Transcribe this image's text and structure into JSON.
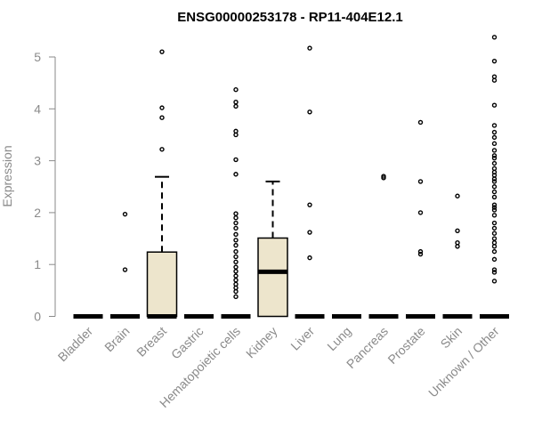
{
  "chart_data": {
    "type": "boxplot",
    "title": "ENSG00000253178 - RP11-404E12.1",
    "xlabel": "",
    "ylabel": "Expression",
    "ylim": [
      0,
      5.5
    ],
    "yticks": [
      0,
      1,
      2,
      3,
      4,
      5
    ],
    "grid": false,
    "categories": [
      "Bladder",
      "Brain",
      "Breast",
      "Gastric",
      "Hematopoietic cells",
      "Kidney",
      "Liver",
      "Lung",
      "Pancreas",
      "Prostate",
      "Skin",
      "Unknown / Other"
    ],
    "boxes": [
      {
        "category": "Bladder",
        "q1": 0,
        "median": 0,
        "q3": 0,
        "whisker_low": 0,
        "whisker_high": 0,
        "outliers": []
      },
      {
        "category": "Brain",
        "q1": 0,
        "median": 0,
        "q3": 0,
        "whisker_low": 0,
        "whisker_high": 0,
        "outliers": [
          0.9,
          1.97
        ]
      },
      {
        "category": "Breast",
        "q1": 0,
        "median": 0,
        "q3": 1.24,
        "whisker_low": 0,
        "whisker_high": 2.69,
        "outliers": [
          3.22,
          3.83,
          4.02,
          5.1
        ]
      },
      {
        "category": "Gastric",
        "q1": 0,
        "median": 0,
        "q3": 0,
        "whisker_low": 0,
        "whisker_high": 0,
        "outliers": []
      },
      {
        "category": "Hematopoietic cells",
        "q1": 0,
        "median": 0,
        "q3": 0,
        "whisker_low": 0,
        "whisker_high": 0,
        "outliers": [
          0.38,
          0.48,
          0.55,
          0.62,
          0.7,
          0.78,
          0.87,
          0.95,
          1.05,
          1.15,
          1.25,
          1.37,
          1.47,
          1.58,
          1.7,
          1.8,
          1.9,
          1.98,
          2.74,
          3.02,
          3.5,
          3.57,
          4.05,
          4.13,
          4.37
        ]
      },
      {
        "category": "Kidney",
        "q1": 0,
        "median": 0.86,
        "q3": 1.51,
        "whisker_low": 0,
        "whisker_high": 2.6,
        "outliers": []
      },
      {
        "category": "Liver",
        "q1": 0,
        "median": 0,
        "q3": 0,
        "whisker_low": 0,
        "whisker_high": 0,
        "outliers": [
          1.13,
          1.62,
          2.15,
          3.94,
          5.17
        ]
      },
      {
        "category": "Lung",
        "q1": 0,
        "median": 0,
        "q3": 0,
        "whisker_low": 0,
        "whisker_high": 0,
        "outliers": []
      },
      {
        "category": "Pancreas",
        "q1": 0,
        "median": 0,
        "q3": 0,
        "whisker_low": 0,
        "whisker_high": 0,
        "outliers": [
          2.67,
          2.7
        ]
      },
      {
        "category": "Prostate",
        "q1": 0,
        "median": 0,
        "q3": 0,
        "whisker_low": 0,
        "whisker_high": 0,
        "outliers": [
          1.2,
          1.25,
          2.0,
          2.6,
          3.74
        ]
      },
      {
        "category": "Skin",
        "q1": 0,
        "median": 0,
        "q3": 0,
        "whisker_low": 0,
        "whisker_high": 0,
        "outliers": [
          1.35,
          1.42,
          1.65,
          2.32
        ]
      },
      {
        "category": "Unknown / Other",
        "q1": 0,
        "median": 0,
        "q3": 0,
        "whisker_low": 0,
        "whisker_high": 0,
        "outliers": [
          0.68,
          0.85,
          0.9,
          1.1,
          1.25,
          1.35,
          1.42,
          1.5,
          1.6,
          1.7,
          1.8,
          1.95,
          2.05,
          2.1,
          2.15,
          2.3,
          2.4,
          2.5,
          2.6,
          2.65,
          2.72,
          2.78,
          2.85,
          2.95,
          3.05,
          3.1,
          3.2,
          3.33,
          3.45,
          3.55,
          3.68,
          4.07,
          4.55,
          4.62,
          4.92,
          5.38
        ]
      }
    ],
    "colors": {
      "box_fill": "#ede5cc",
      "box_stroke": "#000000",
      "axis": "#8a8a8a",
      "points": "#000000"
    }
  }
}
